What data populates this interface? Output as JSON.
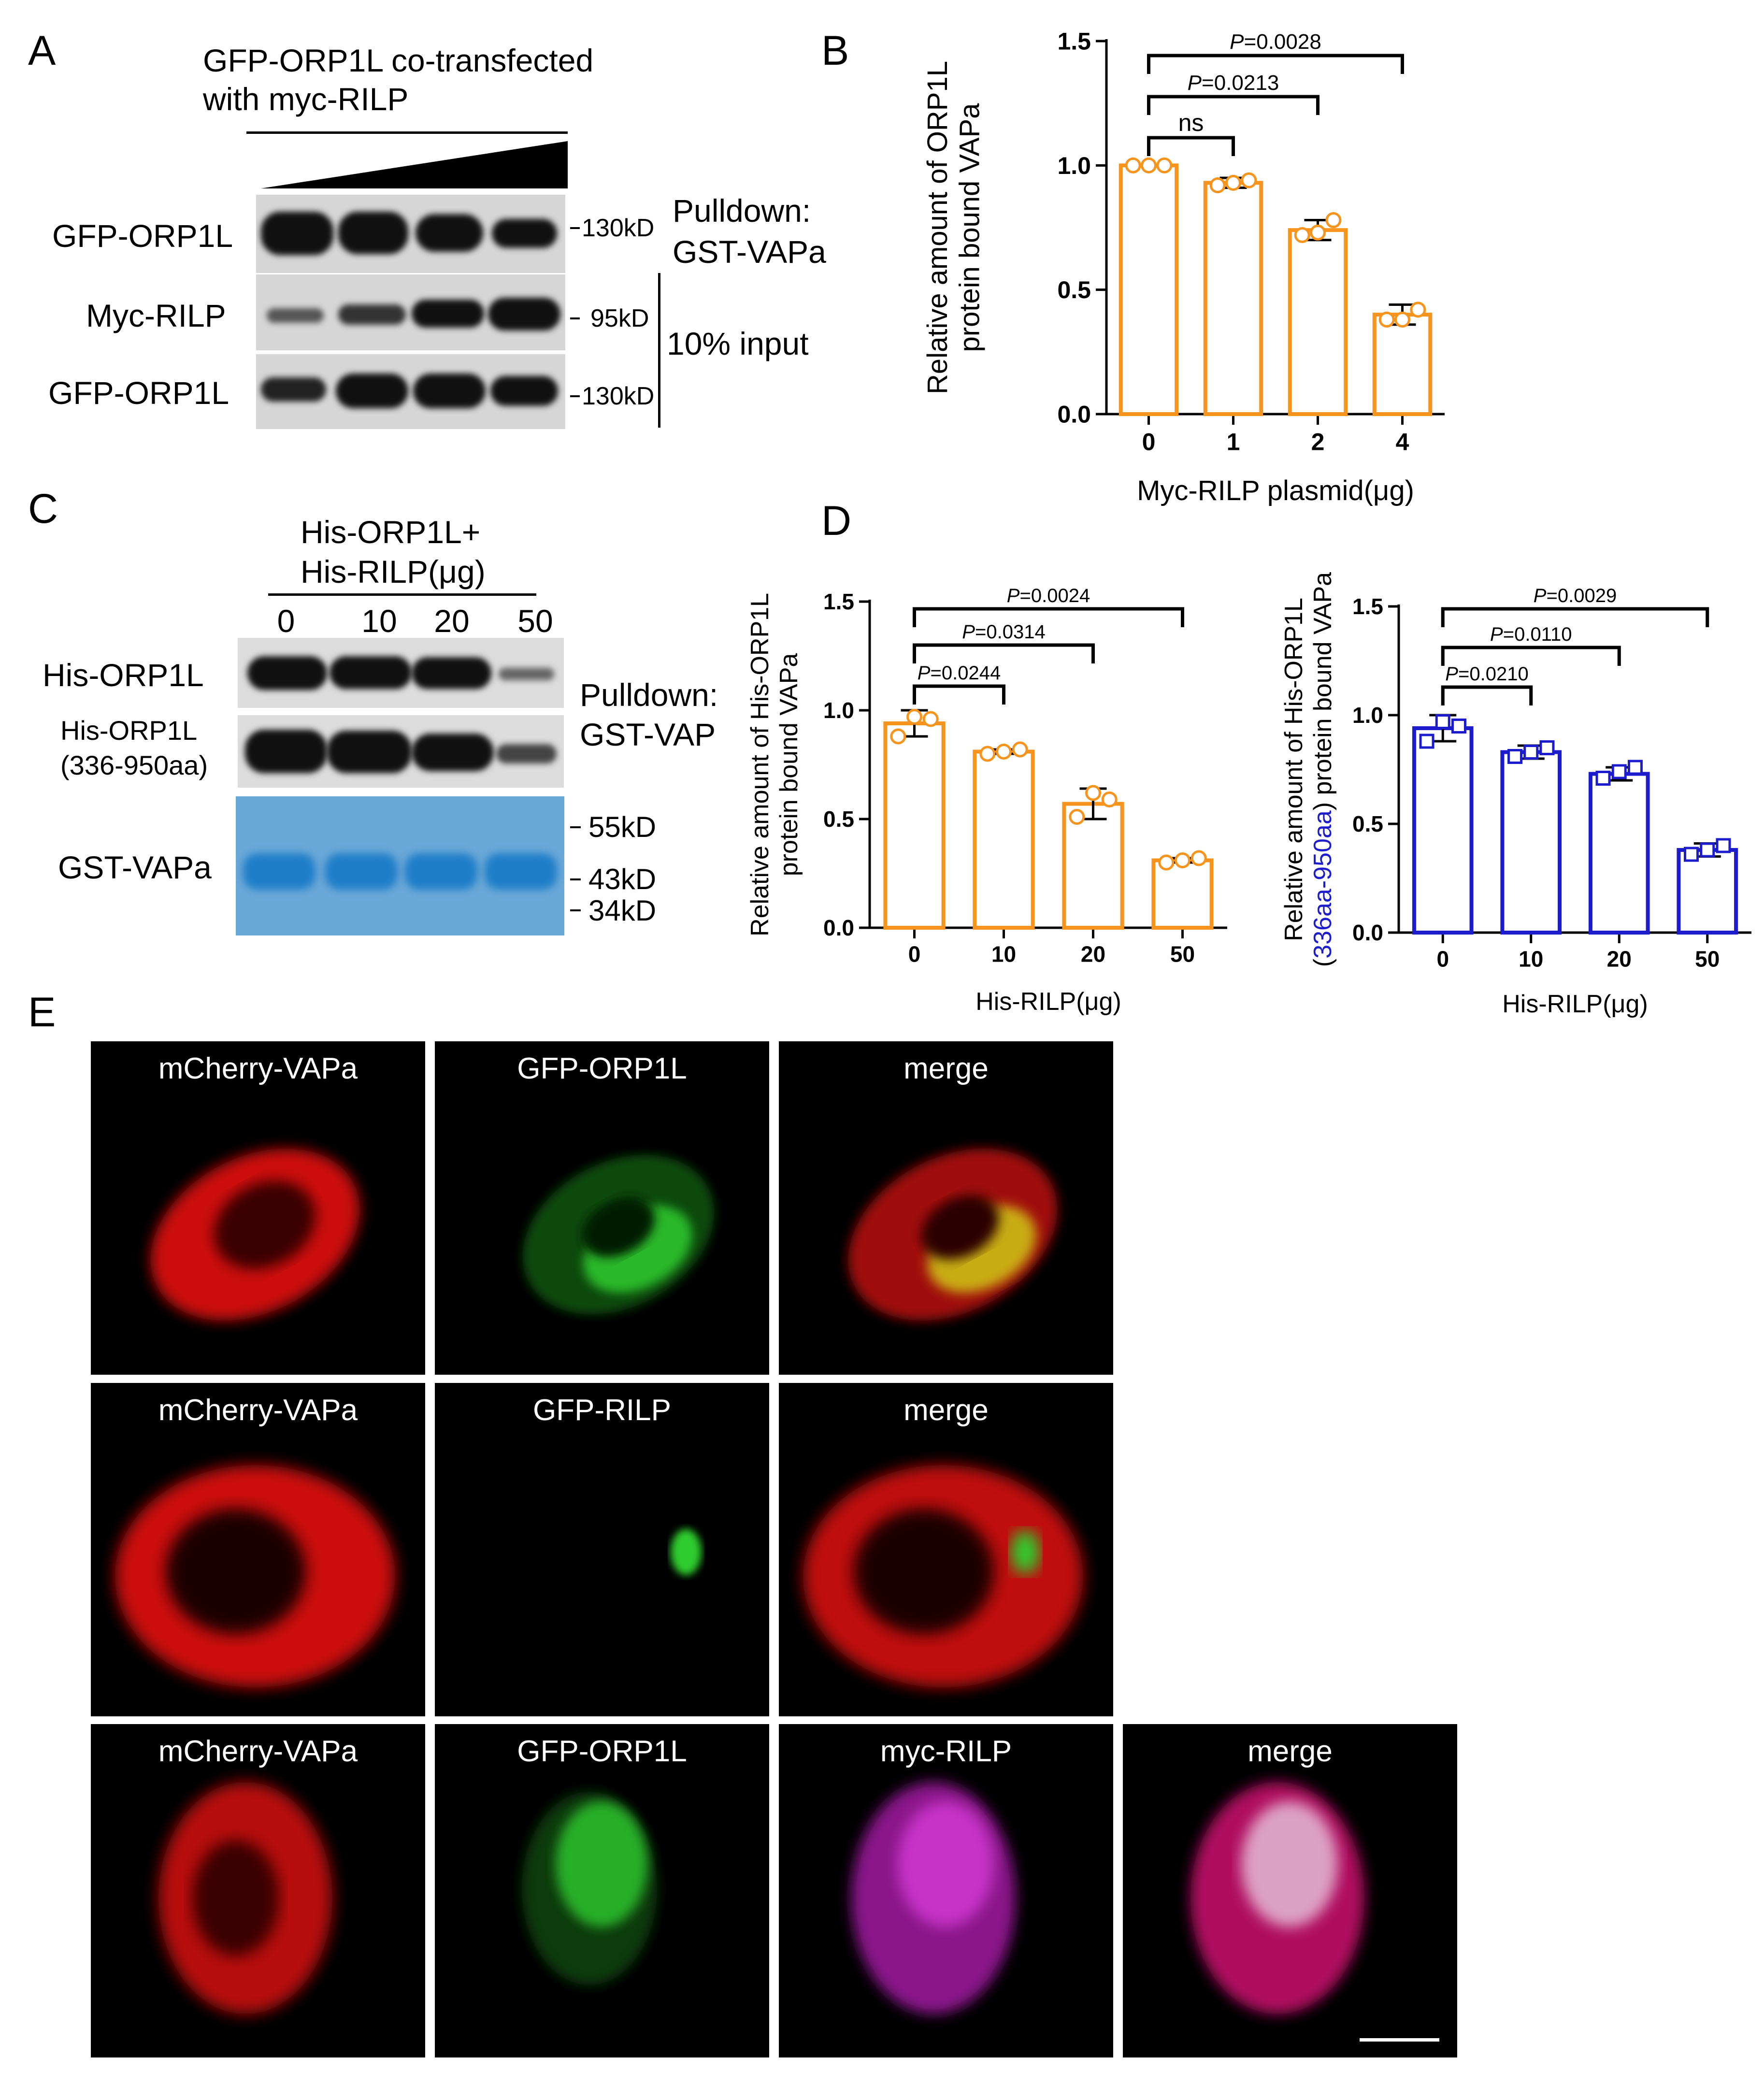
{
  "panel_letters": {
    "a": "A",
    "b": "B",
    "c": "C",
    "d": "D",
    "e": "E"
  },
  "panelA": {
    "header_line1": "GFP-ORP1L co-transfected",
    "header_line2": "with myc-RILP",
    "rows": [
      {
        "label": "GFP-ORP1L",
        "marker": "130kD"
      },
      {
        "label": "Myc-RILP",
        "marker": "95kD"
      },
      {
        "label": "GFP-ORP1L",
        "marker": "130kD"
      }
    ],
    "pulldown_line1": "Pulldown:",
    "pulldown_line2": "GST-VAPa",
    "input_label": "10% input"
  },
  "panelC": {
    "header_line1": "His-ORP1L+",
    "header_line2": "His-RILP(μg)",
    "lanes": [
      "0",
      "10",
      "20",
      "50"
    ],
    "row1_label": "His-ORP1L",
    "row2_label_line1": "His-ORP1L",
    "row2_label_line2": "(336-950aa)",
    "row3_label": "GST-VAPa",
    "markers": [
      "55kD",
      "43kD",
      "34kD"
    ],
    "pulldown_line1": "Pulldown:",
    "pulldown_line2": "GST-VAP"
  },
  "panelE": {
    "rows": [
      [
        "mCherry-VAPa",
        "GFP-ORP1L",
        "merge"
      ],
      [
        "mCherry-VAPa",
        "GFP-RILP",
        "merge"
      ],
      [
        "mCherry-VAPa",
        "GFP-ORP1L",
        "myc-RILP",
        "merge"
      ]
    ]
  },
  "chart_data": [
    {
      "id": "B",
      "type": "bar",
      "categories": [
        "0",
        "1",
        "2",
        "4"
      ],
      "values": [
        1.0,
        0.93,
        0.74,
        0.4
      ],
      "errors": [
        0.0,
        0.02,
        0.04,
        0.04
      ],
      "points": [
        [
          1.0,
          1.0,
          1.0
        ],
        [
          0.92,
          0.93,
          0.94
        ],
        [
          0.72,
          0.73,
          0.78
        ],
        [
          0.38,
          0.38,
          0.42
        ]
      ],
      "marker": "circle",
      "color": "#f7941d",
      "xlabel": "Myc-RILP plasmid(μg)",
      "ylabel_line1": "Relative amount of ORP1L",
      "ylabel_line2": "protein bound VAPa",
      "ylim": [
        0,
        1.5
      ],
      "yticks": [
        "0.0",
        "0.5",
        "1.0",
        "1.5"
      ],
      "significance": [
        {
          "from": 0,
          "to": 1,
          "label": "ns",
          "italic_p": false
        },
        {
          "from": 0,
          "to": 2,
          "label": "=0.0213",
          "italic_p": true
        },
        {
          "from": 0,
          "to": 3,
          "label": "=0.0028",
          "italic_p": true
        }
      ]
    },
    {
      "id": "D1",
      "type": "bar",
      "categories": [
        "0",
        "10",
        "20",
        "50"
      ],
      "values": [
        0.94,
        0.81,
        0.57,
        0.31
      ],
      "errors": [
        0.06,
        0.01,
        0.07,
        0.01
      ],
      "points": [
        [
          0.88,
          0.97,
          0.96
        ],
        [
          0.8,
          0.81,
          0.82
        ],
        [
          0.51,
          0.62,
          0.59
        ],
        [
          0.3,
          0.31,
          0.32
        ]
      ],
      "marker": "circle",
      "color": "#f7941d",
      "xlabel": "His-RILP(μg)",
      "ylabel_line1": "Relative amount of His-ORP1L",
      "ylabel_line2": "protein bound VAPa",
      "ylim": [
        0,
        1.5
      ],
      "yticks": [
        "0.0",
        "0.5",
        "1.0",
        "1.5"
      ],
      "significance": [
        {
          "from": 0,
          "to": 1,
          "label": "=0.0244",
          "italic_p": true
        },
        {
          "from": 0,
          "to": 2,
          "label": "=0.0314",
          "italic_p": true
        },
        {
          "from": 0,
          "to": 3,
          "label": "=0.0024",
          "italic_p": true
        }
      ]
    },
    {
      "id": "D2",
      "type": "bar",
      "categories": [
        "0",
        "10",
        "20",
        "50"
      ],
      "values": [
        0.94,
        0.83,
        0.73,
        0.38
      ],
      "errors": [
        0.06,
        0.03,
        0.03,
        0.03
      ],
      "points": [
        [
          0.88,
          0.97,
          0.95
        ],
        [
          0.81,
          0.83,
          0.85
        ],
        [
          0.71,
          0.74,
          0.76
        ],
        [
          0.36,
          0.38,
          0.4
        ]
      ],
      "marker": "square",
      "color": "#1c1ccc",
      "xlabel": "His-RILP(μg)",
      "ylabel_line1": "Relative amount of His-ORP1L",
      "ylabel_line2_pre": "(",
      "ylabel_line2_blue": "336aa-950aa",
      "ylabel_line2_post": ") protein bound VAPa",
      "ylim": [
        0,
        1.5
      ],
      "yticks": [
        "0.0",
        "0.5",
        "1.0",
        "1.5"
      ],
      "significance": [
        {
          "from": 0,
          "to": 1,
          "label": "=0.0210",
          "italic_p": true
        },
        {
          "from": 0,
          "to": 2,
          "label": "=0.0110",
          "italic_p": true
        },
        {
          "from": 0,
          "to": 3,
          "label": "=0.0029",
          "italic_p": true
        }
      ]
    }
  ]
}
